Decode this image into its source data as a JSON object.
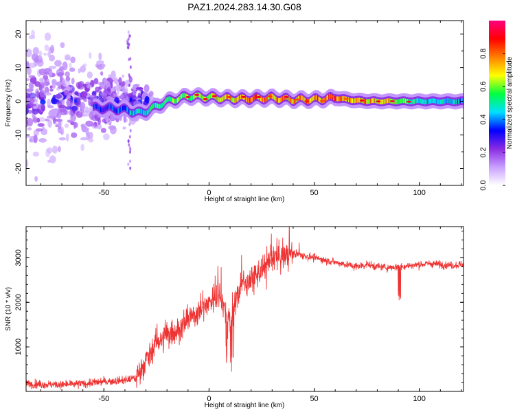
{
  "figure": {
    "title": "PAZ1.2024.283.14.30.G08"
  },
  "chart_data": [
    {
      "type": "heatmap",
      "xlabel": "Height of straight line (km)",
      "ylabel": "Frequency (Hz)",
      "xlim": [
        -87,
        121
      ],
      "ylim": [
        -25,
        24
      ],
      "xticks": [
        -50,
        0,
        50,
        100
      ],
      "yticks": [
        -20,
        -10,
        0,
        10,
        20
      ],
      "colorbar": {
        "label": "Normalized spectral amplitude",
        "range": [
          0.0,
          1.0
        ],
        "ticks": [
          0.0,
          0.2,
          0.4,
          0.6,
          0.8
        ],
        "colors": [
          "#ffffff",
          "#c8a0ff",
          "#8a2be2",
          "#0000ff",
          "#00e0ff",
          "#00ff40",
          "#ffff00",
          "#ff8000",
          "#ff0000",
          "#ff0080"
        ]
      },
      "ridge": {
        "x": [
          -50,
          -40,
          -33,
          -30,
          -20,
          -10,
          0,
          10,
          20,
          30,
          40,
          50,
          60,
          70,
          80,
          90,
          100,
          121
        ],
        "y": [
          -2.0,
          -2.5,
          -3.5,
          -3.0,
          0.0,
          1.5,
          1.2,
          0.8,
          0.8,
          1.0,
          0.5,
          0.5,
          1.0,
          0.2,
          0.0,
          0.0,
          0.0,
          0.0
        ],
        "peak_amplitude": [
          0.35,
          0.4,
          0.55,
          0.5,
          0.6,
          0.65,
          0.7,
          0.75,
          0.85,
          0.75,
          0.8,
          0.8,
          0.85,
          0.8,
          0.75,
          0.7,
          0.5,
          0.45
        ]
      }
    },
    {
      "type": "line",
      "xlabel": "Height of straight line (km)",
      "ylabel": "SNR (10 * v/v)",
      "xlim": [
        -87,
        121
      ],
      "ylim": [
        0,
        3700
      ],
      "xticks": [
        -50,
        0,
        50,
        100
      ],
      "yticks": [
        1000,
        2000,
        3000
      ],
      "color": "#ee3333",
      "series": [
        {
          "x": [
            -87,
            -80,
            -70,
            -60,
            -50,
            -40,
            -35,
            -30,
            -25,
            -20,
            -15,
            -10,
            -5,
            0,
            5,
            10,
            15,
            20,
            25,
            30,
            35,
            40,
            45,
            50,
            55,
            60,
            65,
            70,
            75,
            80,
            85,
            90,
            95,
            100,
            105,
            110,
            115,
            121
          ],
          "y": [
            180,
            160,
            150,
            170,
            220,
            250,
            300,
            700,
            1100,
            1250,
            1400,
            1600,
            1800,
            2000,
            2200,
            1500,
            2400,
            2500,
            2700,
            2950,
            3050,
            3100,
            3050,
            3000,
            2950,
            2900,
            2850,
            2800,
            2850,
            2800,
            2780,
            2800,
            2820,
            2850,
            2870,
            2850,
            2830,
            2850
          ]
        }
      ]
    }
  ]
}
